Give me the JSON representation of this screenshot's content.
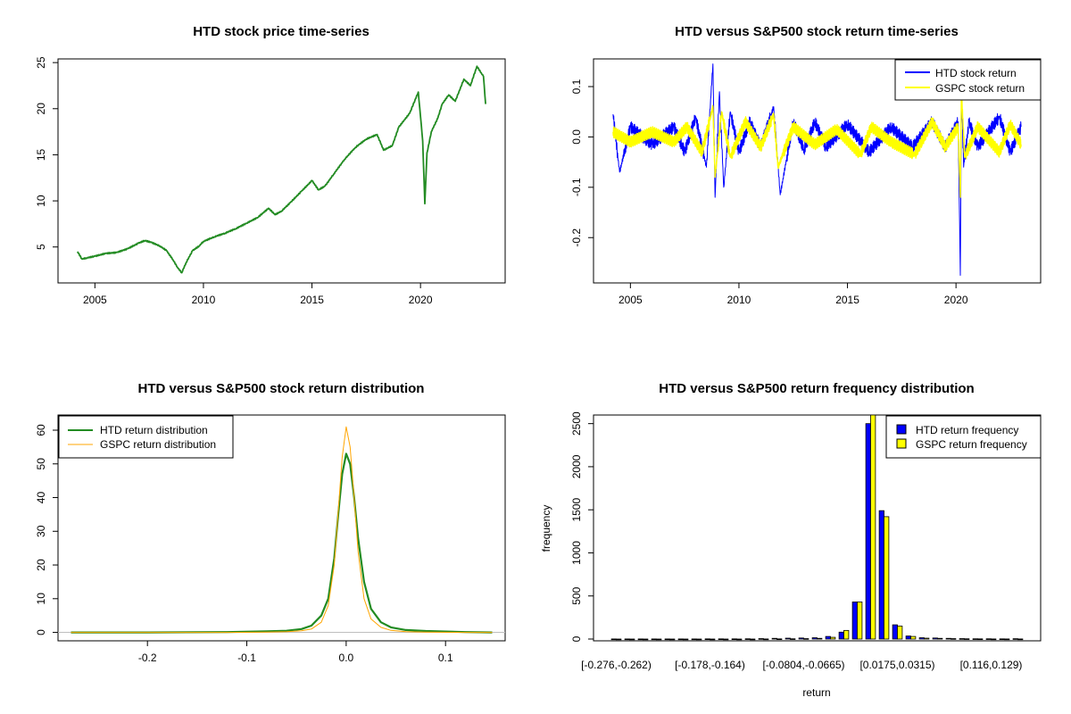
{
  "colors": {
    "htd_price": "#228b22",
    "htd_return": "#0000ff",
    "gspc_return": "#ffff00",
    "htd_density": "#228b22",
    "gspc_density": "#ffa500",
    "htd_bar": "#0000ff",
    "gspc_bar": "#ffff00",
    "axis": "#000000",
    "zero_line": "#bebebe"
  },
  "chart_data": [
    {
      "id": "price",
      "type": "line",
      "title": "HTD stock price time-series",
      "xlabel": "",
      "ylabel": "",
      "xlim": [
        2003.3,
        2023.9
      ],
      "ylim": [
        1.1,
        25.4
      ],
      "x_ticks": [
        2005,
        2010,
        2015,
        2020
      ],
      "y_ticks": [
        5,
        10,
        15,
        20,
        25
      ],
      "grid": false,
      "series": [
        {
          "x": [
            2004.2,
            2004.4,
            2004.6,
            2005.0,
            2005.5,
            2006.0,
            2006.5,
            2007.0,
            2007.3,
            2007.6,
            2008.0,
            2008.3,
            2008.6,
            2008.8,
            2009.0,
            2009.2,
            2009.5,
            2009.8,
            2010.0,
            2010.5,
            2011.0,
            2011.5,
            2012.0,
            2012.5,
            2013.0,
            2013.3,
            2013.6,
            2014.0,
            2014.5,
            2015.0,
            2015.3,
            2015.6,
            2016.0,
            2016.5,
            2017.0,
            2017.5,
            2018.0,
            2018.3,
            2018.7,
            2019.0,
            2019.5,
            2019.9,
            2020.1,
            2020.2,
            2020.3,
            2020.5,
            2020.8,
            2021.0,
            2021.3,
            2021.6,
            2022.0,
            2022.3,
            2022.6,
            2022.9,
            2023.0
          ],
          "y": [
            4.5,
            3.7,
            3.8,
            4.0,
            4.3,
            4.4,
            4.8,
            5.4,
            5.7,
            5.5,
            5.1,
            4.6,
            3.6,
            2.8,
            2.2,
            3.3,
            4.6,
            5.1,
            5.6,
            6.1,
            6.5,
            7.0,
            7.6,
            8.2,
            9.2,
            8.5,
            8.9,
            9.8,
            11.0,
            12.2,
            11.2,
            11.6,
            12.9,
            14.5,
            15.8,
            16.7,
            17.2,
            15.5,
            16.0,
            18.0,
            19.5,
            21.8,
            16.5,
            9.7,
            15.2,
            17.5,
            19.0,
            20.5,
            21.5,
            20.8,
            23.2,
            22.5,
            24.6,
            23.5,
            20.5
          ]
        }
      ]
    },
    {
      "id": "returns",
      "type": "line",
      "title": "HTD versus S&P500 stock return time-series",
      "xlabel": "",
      "ylabel": "",
      "xlim": [
        2003.3,
        2023.9
      ],
      "ylim": [
        -0.29,
        0.155
      ],
      "x_ticks": [
        2005,
        2010,
        2015,
        2020
      ],
      "y_ticks": [
        -0.2,
        -0.1,
        0.0,
        0.1
      ],
      "y_tick_labels": [
        "-0.2",
        "-0.1",
        "0.0",
        "0.1"
      ],
      "legend": {
        "position": "top-right"
      },
      "grid": false,
      "series": [
        {
          "name": "HTD stock return",
          "x": [
            2004.2,
            2004.5,
            2005.0,
            2006.0,
            2007.0,
            2007.5,
            2008.0,
            2008.5,
            2008.8,
            2008.9,
            2009.1,
            2009.3,
            2009.6,
            2010.0,
            2010.5,
            2011.0,
            2011.6,
            2011.9,
            2012.5,
            2013.0,
            2013.5,
            2014.0,
            2015.0,
            2016.0,
            2017.0,
            2018.0,
            2018.9,
            2019.5,
            2020.1,
            2020.2,
            2020.25,
            2020.35,
            2020.6,
            2021.0,
            2022.0,
            2022.5,
            2023.0
          ],
          "y": [
            0.045,
            -0.07,
            0.02,
            -0.015,
            0.02,
            -0.03,
            0.04,
            -0.06,
            0.145,
            -0.12,
            0.09,
            -0.1,
            0.05,
            -0.03,
            0.03,
            -0.02,
            0.06,
            -0.115,
            0.03,
            -0.025,
            0.03,
            -0.02,
            0.025,
            -0.03,
            0.02,
            -0.02,
            0.03,
            -0.02,
            0.03,
            -0.275,
            0.09,
            -0.06,
            0.03,
            -0.02,
            0.04,
            -0.03,
            0.02
          ]
        },
        {
          "name": "GSPC stock return",
          "x": [
            2004.2,
            2005.0,
            2006.0,
            2007.0,
            2007.6,
            2008.3,
            2008.8,
            2008.9,
            2009.2,
            2009.6,
            2010.3,
            2011.0,
            2011.6,
            2011.8,
            2012.5,
            2013.5,
            2014.5,
            2015.6,
            2016.1,
            2017.0,
            2018.1,
            2018.9,
            2019.5,
            2020.1,
            2020.2,
            2020.25,
            2020.4,
            2021.0,
            2022.0,
            2022.5,
            2023.0
          ],
          "y": [
            0.01,
            -0.01,
            0.01,
            -0.01,
            0.02,
            -0.03,
            0.06,
            -0.08,
            0.05,
            -0.04,
            0.03,
            -0.02,
            0.045,
            -0.06,
            0.02,
            -0.015,
            0.015,
            -0.035,
            0.02,
            -0.01,
            -0.035,
            0.03,
            -0.02,
            0.02,
            -0.12,
            0.09,
            -0.04,
            0.02,
            -0.03,
            0.025,
            -0.015
          ]
        }
      ]
    },
    {
      "id": "density",
      "type": "line",
      "title": "HTD versus S&P500 stock return distribution",
      "xlabel": "",
      "ylabel": "",
      "xlim": [
        -0.29,
        0.16
      ],
      "ylim": [
        -2.5,
        64.5
      ],
      "x_ticks": [
        -0.2,
        -0.1,
        0.0,
        0.1
      ],
      "x_tick_labels": [
        "-0.2",
        "-0.1",
        "0.0",
        "0.1"
      ],
      "y_ticks": [
        0,
        10,
        20,
        30,
        40,
        50,
        60
      ],
      "legend": {
        "position": "top-left"
      },
      "grid": false,
      "series": [
        {
          "name": "HTD return distribution",
          "x": [
            -0.277,
            -0.2,
            -0.12,
            -0.08,
            -0.06,
            -0.045,
            -0.035,
            -0.025,
            -0.018,
            -0.012,
            -0.008,
            -0.004,
            0.0,
            0.004,
            0.008,
            0.012,
            0.018,
            0.025,
            0.035,
            0.045,
            0.06,
            0.08,
            0.12,
            0.147
          ],
          "y": [
            0.0,
            0.0,
            0.1,
            0.3,
            0.5,
            1.0,
            2.0,
            5.0,
            10.0,
            22.0,
            35.0,
            47.0,
            53.0,
            50.0,
            40.0,
            28.0,
            15.0,
            7.0,
            3.0,
            1.5,
            0.7,
            0.4,
            0.1,
            0.0
          ]
        },
        {
          "name": "GSPC return distribution",
          "x": [
            -0.277,
            -0.2,
            -0.12,
            -0.08,
            -0.06,
            -0.045,
            -0.035,
            -0.025,
            -0.018,
            -0.012,
            -0.008,
            -0.004,
            0.0,
            0.004,
            0.008,
            0.012,
            0.018,
            0.025,
            0.035,
            0.045,
            0.06,
            0.08,
            0.12,
            0.147
          ],
          "y": [
            0.0,
            0.0,
            0.0,
            0.1,
            0.2,
            0.5,
            1.0,
            3.0,
            8.0,
            20.0,
            36.0,
            52.0,
            61.0,
            55.0,
            40.0,
            24.0,
            10.0,
            4.0,
            1.5,
            0.6,
            0.2,
            0.1,
            0.0,
            0.0
          ]
        }
      ]
    },
    {
      "id": "histogram",
      "type": "bar",
      "title": "HTD versus S&P500 return frequency distribution",
      "xlabel": "return",
      "ylabel": "frequency",
      "ylim": [
        0,
        2600
      ],
      "y_ticks": [
        0,
        500,
        1000,
        1500,
        2000,
        2500
      ],
      "category_labels_shown": [
        "[-0.276,-0.262)",
        "[-0.178,-0.164)",
        "[-0.0804,-0.0665)",
        "[0.0175,0.0315)",
        "[0.116,0.129)"
      ],
      "category_label_positions": [
        0,
        7,
        14,
        21,
        28
      ],
      "bin_count": 31,
      "legend": {
        "position": "top-right"
      },
      "grid": false,
      "series": [
        {
          "name": "HTD return frequency",
          "values": [
            1,
            1,
            1,
            1,
            1,
            1,
            1,
            2,
            2,
            2,
            3,
            5,
            8,
            10,
            12,
            15,
            30,
            80,
            430,
            2500,
            1490,
            165,
            35,
            15,
            12,
            8,
            5,
            3,
            3,
            2,
            4
          ]
        },
        {
          "name": "GSPC return frequency",
          "values": [
            0,
            0,
            0,
            0,
            0,
            0,
            0,
            0,
            0,
            0,
            0,
            1,
            2,
            3,
            5,
            8,
            20,
            100,
            430,
            2600,
            1420,
            150,
            30,
            10,
            8,
            5,
            3,
            2,
            1,
            1,
            1
          ]
        }
      ]
    }
  ]
}
